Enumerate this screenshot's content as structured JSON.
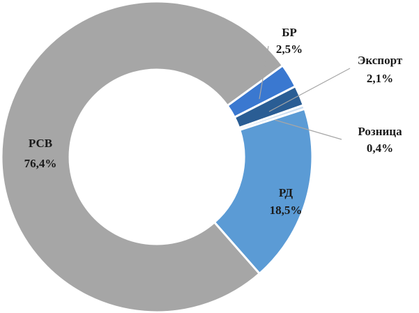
{
  "chart_data": {
    "type": "donut",
    "categories": [
      "БР",
      "Экспорт",
      "Розница",
      "РД",
      "РСВ"
    ],
    "values": [
      2.5,
      2.1,
      0.4,
      18.5,
      76.4
    ],
    "value_labels": [
      "2,5%",
      "2,1%",
      "0,4%",
      "18,5%",
      "76,4%"
    ],
    "colors": [
      "#3a78d0",
      "#2a5d94",
      "#c9dcf0",
      "#5b9bd5",
      "#a6a6a6"
    ]
  }
}
